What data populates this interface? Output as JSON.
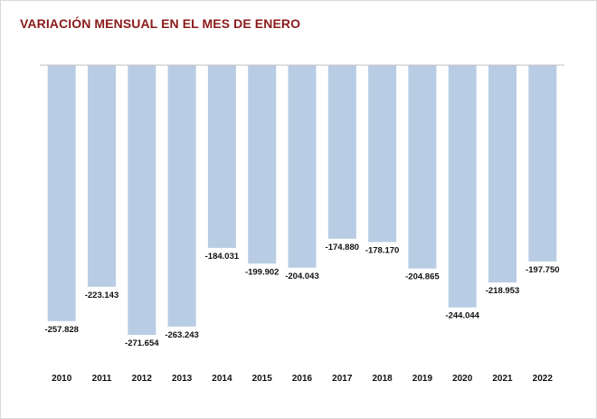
{
  "chart_data": {
    "type": "bar",
    "title": "VARIACIÓN MENSUAL EN EL MES DE ENERO",
    "categories": [
      "2010",
      "2011",
      "2012",
      "2013",
      "2014",
      "2015",
      "2016",
      "2017",
      "2018",
      "2019",
      "2020",
      "2021",
      "2022"
    ],
    "values": [
      -257828,
      -223143,
      -271654,
      -263243,
      -184031,
      -199902,
      -204043,
      -174880,
      -178170,
      -204865,
      -244044,
      -218953,
      -197750
    ],
    "value_labels": [
      "-257.828",
      "-223.143",
      "-271.654",
      "-263.243",
      "-184.031",
      "-199.902",
      "-204.043",
      "-174.880",
      "-178.170",
      "-204.865",
      "-244.044",
      "-218.953",
      "-197.750"
    ],
    "ylim": [
      -271654,
      0
    ],
    "grid": false,
    "colors": {
      "bar": "#b8cce4",
      "title": "#8b1a1a",
      "axis": "#bfbfbf"
    }
  }
}
